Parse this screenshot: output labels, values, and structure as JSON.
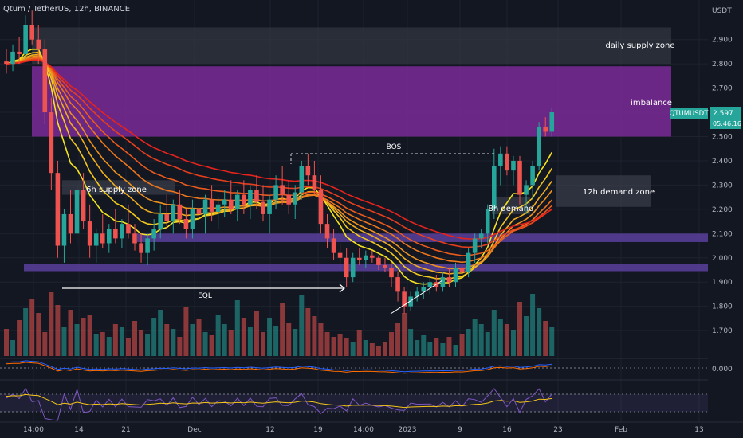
{
  "header": {
    "symbol_line": "Qtum / TetherUS, 12h, BINANCE"
  },
  "price_axis": {
    "unit": "USDT",
    "ticks": [
      "2.900",
      "2.800",
      "2.700",
      "2.600",
      "2.500",
      "2.400",
      "2.300",
      "2.200",
      "2.100",
      "2.000",
      "1.900",
      "1.800",
      "1.700"
    ],
    "current_price": "2.597",
    "ticker_badge": "QTUMUSDT",
    "countdown": "05:46:16",
    "oscillator_tick": "0.000"
  },
  "time_axis": {
    "ticks": [
      "14:00",
      "14",
      "21",
      "Dec",
      "12",
      "19",
      "14:00",
      "2023",
      "9",
      "16",
      "23",
      "Feb",
      "13"
    ]
  },
  "annotations": {
    "daily_supply": "daily supply zone",
    "imbalance": "imbalance",
    "supply_6h": "6h supply zone",
    "demand_12h": "12h demand zone",
    "demand_8h": "8h demand",
    "bos": "BOS",
    "eql": "EQL"
  },
  "colors": {
    "background": "#131722",
    "bull": "#26a69a",
    "bear": "#ef5350",
    "imbalance": "#7b2a96",
    "support_band": "#5b3f9e",
    "zone_gray": "#3b3f4a",
    "ribbon_fast": "#f5e51e",
    "ribbon_slow": "#e5231d"
  },
  "chart_data": {
    "type": "candlestick",
    "title": "Qtum / TetherUS, 12h, BINANCE",
    "y_range": [
      1.74,
      3.02
    ],
    "candles": [
      [
        2.81,
        2.86,
        2.76,
        2.8
      ],
      [
        2.8,
        2.88,
        2.77,
        2.85
      ],
      [
        2.85,
        2.91,
        2.8,
        2.84
      ],
      [
        2.84,
        3.0,
        2.82,
        2.96
      ],
      [
        2.96,
        3.02,
        2.88,
        2.9
      ],
      [
        2.9,
        2.96,
        2.8,
        2.86
      ],
      [
        2.86,
        2.9,
        2.55,
        2.6
      ],
      [
        2.6,
        2.66,
        2.28,
        2.35
      ],
      [
        2.35,
        2.4,
        2.0,
        2.05
      ],
      [
        2.05,
        2.2,
        1.98,
        2.18
      ],
      [
        2.18,
        2.28,
        2.06,
        2.1
      ],
      [
        2.1,
        2.3,
        2.05,
        2.28
      ],
      [
        2.28,
        2.35,
        2.12,
        2.15
      ],
      [
        2.15,
        2.22,
        2.0,
        2.05
      ],
      [
        2.05,
        2.12,
        1.98,
        2.1
      ],
      [
        2.1,
        2.18,
        2.04,
        2.06
      ],
      [
        2.06,
        2.14,
        2.02,
        2.12
      ],
      [
        2.12,
        2.2,
        2.06,
        2.08
      ],
      [
        2.08,
        2.16,
        2.04,
        2.14
      ],
      [
        2.14,
        2.22,
        2.08,
        2.1
      ],
      [
        2.1,
        2.14,
        2.03,
        2.06
      ],
      [
        2.06,
        2.1,
        1.98,
        2.02
      ],
      [
        2.02,
        2.1,
        1.97,
        2.08
      ],
      [
        2.08,
        2.16,
        2.03,
        2.12
      ],
      [
        2.12,
        2.22,
        2.08,
        2.18
      ],
      [
        2.18,
        2.26,
        2.12,
        2.15
      ],
      [
        2.15,
        2.24,
        2.1,
        2.22
      ],
      [
        2.22,
        2.28,
        2.14,
        2.16
      ],
      [
        2.16,
        2.2,
        2.08,
        2.12
      ],
      [
        2.12,
        2.24,
        2.08,
        2.2
      ],
      [
        2.2,
        2.3,
        2.14,
        2.18
      ],
      [
        2.18,
        2.26,
        2.1,
        2.24
      ],
      [
        2.24,
        2.3,
        2.15,
        2.19
      ],
      [
        2.19,
        2.25,
        2.12,
        2.22
      ],
      [
        2.22,
        2.28,
        2.17,
        2.24
      ],
      [
        2.24,
        2.32,
        2.18,
        2.2
      ],
      [
        2.2,
        2.28,
        2.15,
        2.26
      ],
      [
        2.26,
        2.32,
        2.18,
        2.22
      ],
      [
        2.22,
        2.3,
        2.16,
        2.28
      ],
      [
        2.28,
        2.34,
        2.2,
        2.23
      ],
      [
        2.23,
        2.3,
        2.15,
        2.18
      ],
      [
        2.18,
        2.26,
        2.1,
        2.24
      ],
      [
        2.24,
        2.34,
        2.2,
        2.3
      ],
      [
        2.3,
        2.38,
        2.22,
        2.26
      ],
      [
        2.26,
        2.32,
        2.18,
        2.22
      ],
      [
        2.22,
        2.3,
        2.16,
        2.27
      ],
      [
        2.27,
        2.4,
        2.24,
        2.38
      ],
      [
        2.38,
        2.43,
        2.3,
        2.34
      ],
      [
        2.34,
        2.4,
        2.26,
        2.28
      ],
      [
        2.28,
        2.34,
        2.1,
        2.14
      ],
      [
        2.14,
        2.18,
        2.04,
        2.08
      ],
      [
        2.08,
        2.12,
        1.99,
        2.02
      ],
      [
        2.02,
        2.06,
        1.95,
        2.0
      ],
      [
        2.0,
        2.04,
        1.88,
        1.92
      ],
      [
        1.92,
        2.02,
        1.9,
        2.0
      ],
      [
        2.0,
        2.04,
        1.97,
        1.99
      ],
      [
        1.99,
        2.03,
        1.96,
        2.01
      ],
      [
        2.01,
        2.03,
        1.98,
        2.0
      ],
      [
        2.0,
        2.01,
        1.95,
        1.97
      ],
      [
        1.97,
        2.0,
        1.94,
        1.96
      ],
      [
        1.96,
        1.98,
        1.88,
        1.92
      ],
      [
        1.92,
        1.94,
        1.82,
        1.86
      ],
      [
        1.86,
        1.88,
        1.77,
        1.8
      ],
      [
        1.8,
        1.86,
        1.78,
        1.84
      ],
      [
        1.84,
        1.88,
        1.82,
        1.86
      ],
      [
        1.86,
        1.9,
        1.83,
        1.88
      ],
      [
        1.88,
        1.92,
        1.85,
        1.9
      ],
      [
        1.9,
        1.93,
        1.86,
        1.88
      ],
      [
        1.88,
        1.94,
        1.86,
        1.92
      ],
      [
        1.92,
        1.96,
        1.88,
        1.9
      ],
      [
        1.9,
        1.98,
        1.88,
        1.96
      ],
      [
        1.96,
        2.0,
        1.92,
        1.94
      ],
      [
        1.94,
        2.04,
        1.92,
        2.02
      ],
      [
        2.02,
        2.1,
        1.98,
        2.08
      ],
      [
        2.08,
        2.12,
        2.04,
        2.1
      ],
      [
        2.1,
        2.22,
        2.06,
        2.2
      ],
      [
        2.2,
        2.45,
        2.16,
        2.38
      ],
      [
        2.38,
        2.46,
        2.3,
        2.43
      ],
      [
        2.43,
        2.46,
        2.34,
        2.36
      ],
      [
        2.36,
        2.42,
        2.3,
        2.4
      ],
      [
        2.4,
        2.42,
        2.22,
        2.26
      ],
      [
        2.26,
        2.32,
        2.18,
        2.3
      ],
      [
        2.3,
        2.4,
        2.24,
        2.38
      ],
      [
        2.38,
        2.56,
        2.36,
        2.54
      ],
      [
        2.54,
        2.58,
        2.5,
        2.52
      ],
      [
        2.52,
        2.62,
        2.5,
        2.6
      ]
    ],
    "volumes": [
      34,
      20,
      45,
      60,
      72,
      54,
      30,
      80,
      64,
      36,
      58,
      40,
      48,
      52,
      28,
      30,
      24,
      40,
      36,
      22,
      44,
      32,
      28,
      48,
      58,
      40,
      34,
      24,
      62,
      40,
      46,
      30,
      26,
      52,
      40,
      32,
      70,
      48,
      36,
      56,
      30,
      48,
      38,
      66,
      42,
      34,
      76,
      60,
      50,
      42,
      30,
      24,
      28,
      22,
      18,
      32,
      20,
      16,
      12,
      18,
      30,
      42,
      54,
      34,
      20,
      26,
      18,
      22,
      16,
      24,
      14,
      28,
      34,
      46,
      40,
      30,
      58,
      46,
      40,
      32,
      68,
      50,
      78,
      60,
      44,
      36
    ],
    "ribbon_periods": [
      8,
      12,
      16,
      20,
      26,
      32,
      40,
      48
    ],
    "zones": [
      {
        "label": "daily supply zone",
        "from": 2.8,
        "to": 2.95
      },
      {
        "label": "imbalance",
        "from": 2.5,
        "to": 2.79
      },
      {
        "label": "6h supply zone",
        "from": 2.26,
        "to": 2.32
      },
      {
        "label": "12h demand zone",
        "from": 2.21,
        "to": 2.34
      },
      {
        "label": "8h demand",
        "from": 2.18,
        "to": 2.25
      },
      {
        "label": "",
        "from": 2.065,
        "to": 2.1
      },
      {
        "label": "",
        "from": 1.945,
        "to": 1.975
      }
    ],
    "bos_level": 2.44,
    "eql_level": 1.87
  }
}
